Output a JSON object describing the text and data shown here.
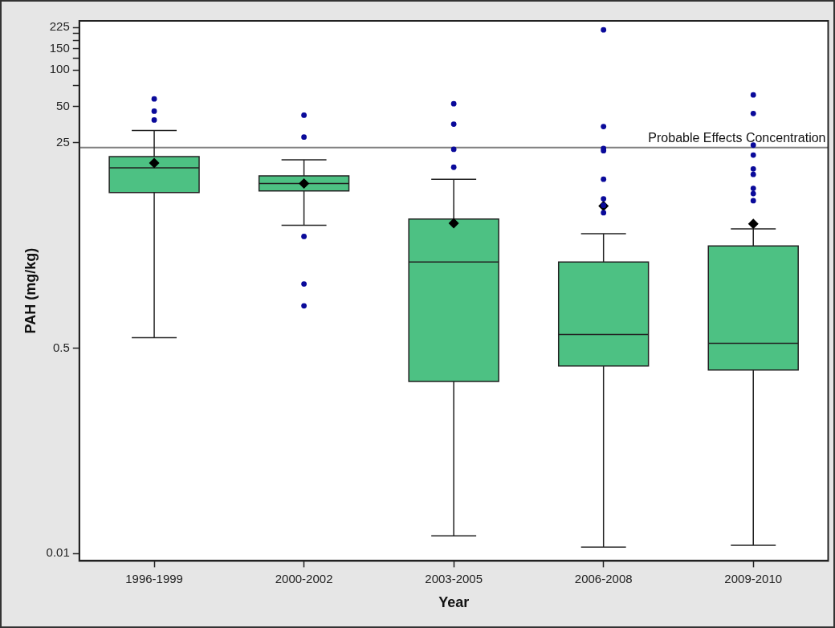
{
  "chart_data": {
    "type": "box",
    "xlabel": "Year",
    "ylabel": "PAH (mg/kg)",
    "log": "y",
    "grid": false,
    "legend": false,
    "categories": [
      "1996-1999",
      "2000-2002",
      "2003-2005",
      "2006-2008",
      "2009-2010"
    ],
    "ylim": [
      0.0087,
      255
    ],
    "yticks": [
      {
        "value": 0.01,
        "label": "0.01"
      },
      {
        "value": 0.5,
        "label": "0.5"
      },
      25,
      50,
      {
        "value": 75,
        "label": null
      },
      100,
      {
        "value": 125,
        "label": null
      },
      150,
      {
        "value": 175,
        "label": null
      },
      {
        "value": 200,
        "label": null
      },
      225
    ],
    "series": [
      {
        "color": "#4dc183",
        "boxes": [
          {
            "low": 0.61,
            "q1": 9.7,
            "median": 15.5,
            "q3": 19.2,
            "high": 31.6,
            "mean": 17,
            "outliers": [
              38.6,
              45.7,
              57.7
            ]
          },
          {
            "low": 5.2,
            "q1": 10,
            "median": 11.5,
            "q3": 13.3,
            "high": 18.1,
            "mean": 11.5,
            "outliers": [
              1.12,
              1.7,
              4.2,
              27.9,
              42.3
            ]
          },
          {
            "low": 0.014,
            "q1": 0.265,
            "median": 2.58,
            "q3": 5.85,
            "high": 12.5,
            "mean": 5.4,
            "outliers": [
              15.7,
              22.1,
              35.7,
              52.6
            ]
          },
          {
            "low": 0.0113,
            "q1": 0.356,
            "median": 0.65,
            "q3": 2.58,
            "high": 4.43,
            "mean": 7.5,
            "outliers": [
              6.6,
              7.6,
              8.6,
              12.5,
              21.5,
              22.4,
              34.1,
              215
            ]
          },
          {
            "low": 0.0117,
            "q1": 0.33,
            "median": 0.548,
            "q3": 3.51,
            "high": 4.86,
            "mean": 5.33,
            "outliers": [
              8.3,
              9.5,
              10.5,
              13.7,
              15.2,
              19.8,
              23.9,
              43.7,
              62.3
            ]
          }
        ]
      }
    ],
    "ref_lines": [
      {
        "axis": "y",
        "value": 22.8,
        "label": "Probable Effects Concentration",
        "color": "#808080"
      }
    ]
  }
}
